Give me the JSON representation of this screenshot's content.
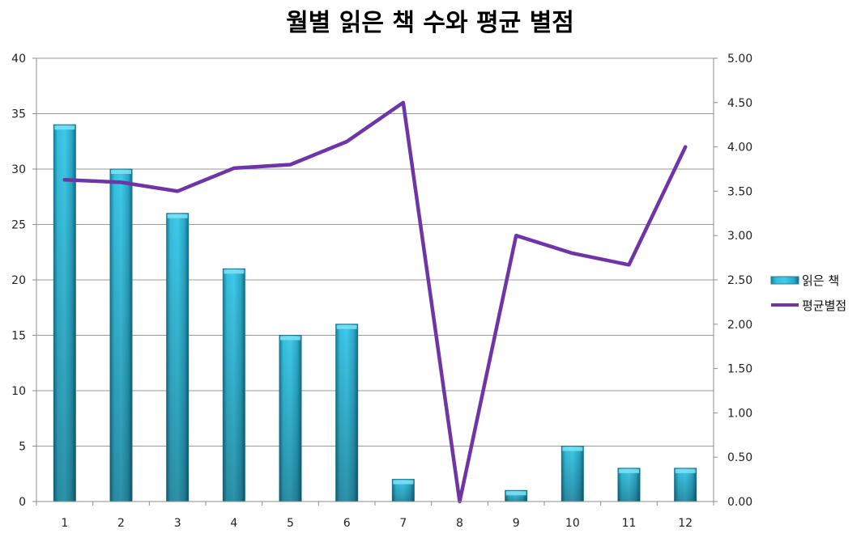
{
  "chart_data": {
    "type": "bar",
    "title": "월별 읽은 책 수와 평균 별점",
    "categories": [
      "1",
      "2",
      "3",
      "4",
      "5",
      "6",
      "7",
      "8",
      "9",
      "10",
      "11",
      "12"
    ],
    "series": [
      {
        "name": "읽은 책",
        "type": "bar",
        "axis": "left",
        "values": [
          34,
          30,
          26,
          21,
          15,
          16,
          2,
          0,
          1,
          5,
          3,
          3
        ],
        "color": "#2fb8d8"
      },
      {
        "name": "평균별점",
        "type": "line",
        "axis": "right",
        "values": [
          3.63,
          3.6,
          3.5,
          3.76,
          3.8,
          4.06,
          4.5,
          0.0,
          3.0,
          2.8,
          2.67,
          4.0
        ],
        "color": "#6f35a6"
      }
    ],
    "y_left": {
      "range": [
        0,
        40
      ],
      "ticks": [
        0,
        5,
        10,
        15,
        20,
        25,
        30,
        35,
        40
      ],
      "tick_labels": [
        "0",
        "5",
        "10",
        "15",
        "20",
        "25",
        "30",
        "35",
        "40"
      ]
    },
    "y_right": {
      "range": [
        0,
        5
      ],
      "ticks": [
        0,
        0.5,
        1,
        1.5,
        2,
        2.5,
        3,
        3.5,
        4,
        4.5,
        5
      ],
      "tick_labels": [
        "0.00",
        "0.50",
        "1.00",
        "1.50",
        "2.00",
        "2.50",
        "3.00",
        "3.50",
        "4.00",
        "4.50",
        "5.00"
      ]
    },
    "grid": true,
    "legend": "right"
  }
}
